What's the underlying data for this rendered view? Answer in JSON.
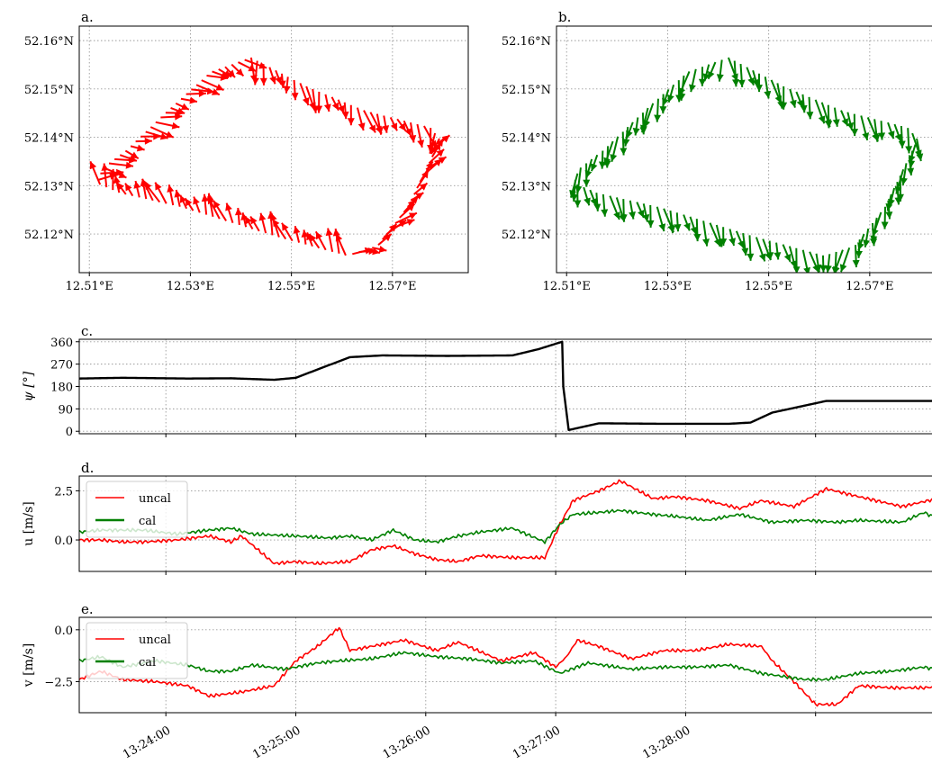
{
  "colors": {
    "uncal": "#ff0000",
    "cal": "#008000",
    "heading": "#000000"
  },
  "chart_data": [
    {
      "id": "a",
      "type": "quiver",
      "panel_label": "a.",
      "xlim": [
        12.508,
        12.585
      ],
      "ylim": [
        52.112,
        52.163
      ],
      "xticks": [
        12.51,
        12.53,
        12.55,
        12.57
      ],
      "xtick_labels": [
        "12.51°E",
        "12.53°E",
        "12.55°E",
        "12.57°E"
      ],
      "yticks": [
        52.12,
        52.13,
        52.14,
        52.15,
        52.16
      ],
      "ytick_labels": [
        "52.12°N",
        "52.13°N",
        "52.14°N",
        "52.15°N",
        "52.16°N"
      ],
      "track": [
        [
          12.5115,
          52.1305
        ],
        [
          12.5125,
          52.1335
        ],
        [
          12.5175,
          52.1375
        ],
        [
          12.5255,
          52.1455
        ],
        [
          12.534,
          52.1535
        ],
        [
          12.542,
          52.1565
        ],
        [
          12.553,
          52.1505
        ],
        [
          12.5645,
          52.1455
        ],
        [
          12.5775,
          52.142
        ],
        [
          12.5795,
          52.1395
        ],
        [
          12.573,
          52.1255
        ],
        [
          12.567,
          52.1175
        ],
        [
          12.561,
          52.1155
        ],
        [
          12.547,
          52.1195
        ],
        [
          12.5285,
          52.1255
        ],
        [
          12.516,
          52.1285
        ],
        [
          12.5115,
          52.1305
        ]
      ],
      "arrows": 120,
      "arrow_color": "uncal",
      "vector_description": "uncalibrated current vectors along the ship track"
    },
    {
      "id": "b",
      "type": "quiver",
      "panel_label": "b.",
      "xlim": [
        12.508,
        12.585
      ],
      "ylim": [
        52.112,
        52.163
      ],
      "xticks": [
        12.51,
        12.53,
        12.55,
        12.57
      ],
      "xtick_labels": [
        "12.51°E",
        "12.53°E",
        "12.55°E",
        "12.57°E"
      ],
      "yticks": [
        52.12,
        52.13,
        52.14,
        52.15,
        52.16
      ],
      "ytick_labels": [
        "52.12°N",
        "52.13°N",
        "52.14°N",
        "52.15°N",
        "52.16°N"
      ],
      "track": [
        [
          12.5115,
          52.1305
        ],
        [
          12.5125,
          52.1335
        ],
        [
          12.5175,
          52.1375
        ],
        [
          12.5255,
          52.1455
        ],
        [
          12.534,
          52.1535
        ],
        [
          12.542,
          52.1565
        ],
        [
          12.553,
          52.1505
        ],
        [
          12.5645,
          52.1455
        ],
        [
          12.5775,
          52.142
        ],
        [
          12.5795,
          52.1395
        ],
        [
          12.573,
          52.1255
        ],
        [
          12.567,
          52.1175
        ],
        [
          12.561,
          52.1155
        ],
        [
          12.547,
          52.1195
        ],
        [
          12.5285,
          52.1255
        ],
        [
          12.516,
          52.1285
        ],
        [
          12.5115,
          52.1305
        ]
      ],
      "arrows": 120,
      "arrow_color": "cal",
      "vector_description": "calibrated current vectors, pointing roughly south"
    },
    {
      "id": "c",
      "type": "line",
      "panel_label": "c.",
      "ylabel": "ψ [°]",
      "xlim_seconds": [
        0,
        400
      ],
      "ylim": [
        -10,
        370
      ],
      "yticks": [
        0,
        90,
        180,
        270,
        360
      ],
      "ytick_labels": [
        "0",
        "90",
        "180",
        "270",
        "360"
      ],
      "series": [
        {
          "color": "heading",
          "x": [
            0,
            20,
            50,
            70,
            90,
            100,
            112,
            125,
            140,
            170,
            200,
            212,
            223,
            223.5,
            226,
            240,
            270,
            300,
            310,
            320,
            345,
            400
          ],
          "y": [
            212,
            215,
            212,
            213,
            207,
            215,
            255,
            298,
            305,
            303,
            305,
            330,
            360,
            180,
            5,
            32,
            30,
            30,
            35,
            75,
            122,
            122
          ]
        }
      ]
    },
    {
      "id": "d",
      "type": "line",
      "panel_label": "d.",
      "ylabel": "u [m/s]",
      "xlim_seconds": [
        0,
        400
      ],
      "ylim": [
        -1.6,
        3.25
      ],
      "yticks": [
        0.0,
        2.5
      ],
      "ytick_labels": [
        "0.0",
        "2.5"
      ],
      "legend": [
        "uncal",
        "cal"
      ],
      "series": [
        {
          "name": "uncal",
          "color": "uncal",
          "x": [
            0,
            10,
            20,
            30,
            45,
            60,
            70,
            75,
            90,
            100,
            110,
            125,
            135,
            145,
            155,
            165,
            175,
            185,
            200,
            215,
            222,
            228,
            240,
            250,
            265,
            275,
            290,
            305,
            315,
            330,
            345,
            360,
            380,
            400
          ],
          "y": [
            0.0,
            0.0,
            -0.1,
            -0.1,
            0.0,
            0.2,
            -0.1,
            0.2,
            -1.2,
            -1.1,
            -1.2,
            -1.1,
            -0.5,
            -0.3,
            -0.7,
            -1.0,
            -1.1,
            -0.8,
            -0.9,
            -0.9,
            0.8,
            2.0,
            2.5,
            3.0,
            2.1,
            2.2,
            2.0,
            1.6,
            2.0,
            1.7,
            2.6,
            2.2,
            1.7,
            2.2
          ]
        },
        {
          "name": "cal",
          "color": "cal",
          "x": [
            0,
            10,
            20,
            30,
            45,
            60,
            70,
            80,
            100,
            115,
            125,
            135,
            145,
            155,
            165,
            175,
            185,
            200,
            215,
            222,
            228,
            240,
            250,
            265,
            275,
            290,
            305,
            320,
            335,
            350,
            360,
            380,
            390,
            400
          ],
          "y": [
            0.4,
            0.5,
            0.5,
            0.5,
            0.3,
            0.5,
            0.6,
            0.3,
            0.2,
            0.1,
            0.2,
            0.0,
            0.5,
            0.0,
            -0.1,
            0.2,
            0.4,
            0.6,
            -0.1,
            0.8,
            1.3,
            1.4,
            1.5,
            1.3,
            1.2,
            1.0,
            1.3,
            0.9,
            1.0,
            0.9,
            1.0,
            0.9,
            1.4,
            0.9
          ]
        }
      ]
    },
    {
      "id": "e",
      "type": "line",
      "panel_label": "e.",
      "ylabel": "v [m/s]",
      "xlim_seconds": [
        0,
        400
      ],
      "ylim": [
        -4.0,
        0.6
      ],
      "yticks": [
        -2.5,
        0.0
      ],
      "ytick_labels": [
        "−2.5",
        "0.0"
      ],
      "legend": [
        "uncal",
        "cal"
      ],
      "series": [
        {
          "name": "uncal",
          "color": "uncal",
          "x": [
            0,
            10,
            20,
            35,
            50,
            60,
            75,
            90,
            100,
            110,
            120,
            125,
            135,
            150,
            165,
            175,
            195,
            210,
            220,
            225,
            230,
            240,
            255,
            270,
            285,
            300,
            315,
            320,
            330,
            340,
            350,
            360,
            375,
            390,
            400
          ],
          "y": [
            -2.4,
            -2.0,
            -2.4,
            -2.5,
            -2.7,
            -3.2,
            -3.0,
            -2.7,
            -1.5,
            -0.8,
            0.1,
            -1.0,
            -0.8,
            -0.5,
            -1.0,
            -0.6,
            -1.5,
            -1.1,
            -1.8,
            -1.3,
            -0.5,
            -0.8,
            -1.4,
            -1.0,
            -1.0,
            -0.7,
            -0.8,
            -1.5,
            -2.5,
            -3.6,
            -3.6,
            -2.7,
            -2.8,
            -2.8,
            -2.7
          ]
        },
        {
          "name": "cal",
          "color": "cal",
          "x": [
            0,
            10,
            20,
            35,
            50,
            60,
            70,
            80,
            95,
            110,
            120,
            135,
            150,
            165,
            180,
            195,
            210,
            222,
            235,
            255,
            270,
            285,
            300,
            315,
            335,
            345,
            360,
            375,
            390,
            400
          ],
          "y": [
            -1.5,
            -1.3,
            -1.8,
            -1.5,
            -1.7,
            -2.0,
            -2.0,
            -1.7,
            -1.9,
            -1.6,
            -1.5,
            -1.4,
            -1.1,
            -1.3,
            -1.4,
            -1.6,
            -1.5,
            -2.1,
            -1.6,
            -1.9,
            -1.8,
            -1.8,
            -1.7,
            -2.1,
            -2.4,
            -2.4,
            -2.1,
            -2.0,
            -1.8,
            -2.0
          ]
        }
      ]
    }
  ],
  "time_axis": {
    "start": "13:23:20",
    "ticks_seconds": [
      40,
      100,
      160,
      220,
      280,
      340
    ],
    "tick_labels": [
      "13:24:00",
      "13:25:00",
      "13:26:00",
      "13:27:00",
      "13:28:00",
      ""
    ]
  }
}
